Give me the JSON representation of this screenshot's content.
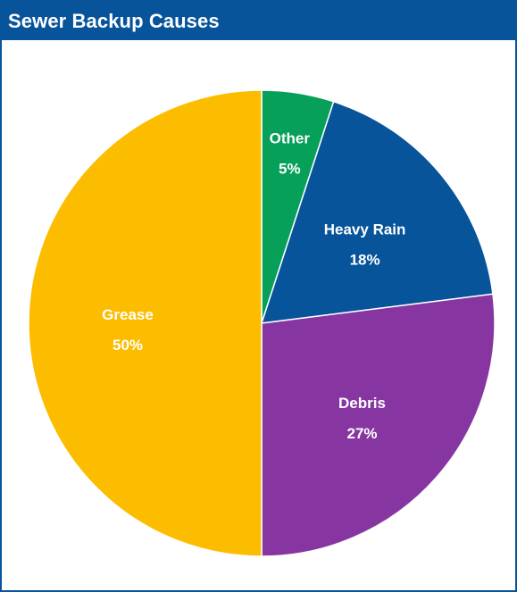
{
  "header": {
    "title": "Sewer Backup Causes"
  },
  "chart_data": {
    "type": "pie",
    "title": "Sewer Backup Causes",
    "start_angle": "12 o'clock",
    "direction": "clockwise",
    "slices": [
      {
        "name": "Other",
        "value": 5,
        "label_value": "5%",
        "color": "#06a05a"
      },
      {
        "name": "Heavy Rain",
        "value": 18,
        "label_value": "18%",
        "color": "#08549b"
      },
      {
        "name": "Debris",
        "value": 27,
        "label_value": "27%",
        "color": "#8736a1"
      },
      {
        "name": "Grease",
        "value": 50,
        "label_value": "50%",
        "color": "#fcbc00"
      }
    ]
  }
}
